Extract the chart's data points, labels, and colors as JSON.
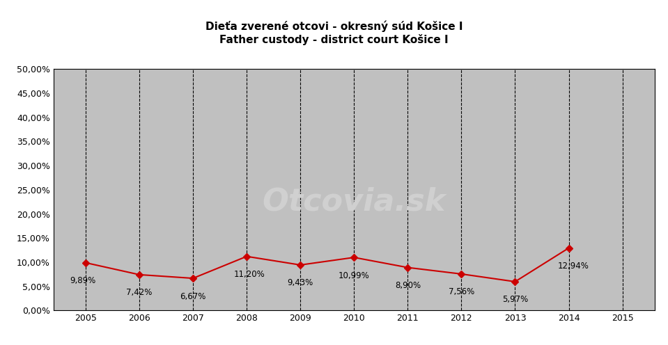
{
  "title_line1": "Dieťa zverené otcovi - okresný súd Košice I",
  "title_line2": "Father custody - district court Košice I",
  "years": [
    2005,
    2006,
    2007,
    2008,
    2009,
    2010,
    2011,
    2012,
    2013,
    2014
  ],
  "values": [
    0.0989,
    0.0742,
    0.0667,
    0.112,
    0.0943,
    0.1099,
    0.089,
    0.0756,
    0.0597,
    0.1294
  ],
  "labels": [
    "9,89%",
    "7,42%",
    "6,67%",
    "11,20%",
    "9,43%",
    "10,99%",
    "8,90%",
    "7,56%",
    "5,97%",
    "12,94%"
  ],
  "line_color": "#CC0000",
  "marker_color": "#CC0000",
  "plot_area_color": "#C0C0C0",
  "outer_bg_color": "#FFFFFF",
  "watermark_text": "Otcovia.sk",
  "watermark_color": "#D0D0D0",
  "ylim": [
    0.0,
    0.5
  ],
  "yticks": [
    0.0,
    0.05,
    0.1,
    0.15,
    0.2,
    0.25,
    0.3,
    0.35,
    0.4,
    0.45,
    0.5
  ],
  "xticks": [
    2005,
    2006,
    2007,
    2008,
    2009,
    2010,
    2011,
    2012,
    2013,
    2014,
    2015
  ],
  "vline_years": [
    2005,
    2006,
    2007,
    2008,
    2009,
    2010,
    2011,
    2012,
    2013,
    2014,
    2015
  ],
  "title_fontsize": 11,
  "tick_fontsize": 9,
  "label_fontsize": 8.5
}
